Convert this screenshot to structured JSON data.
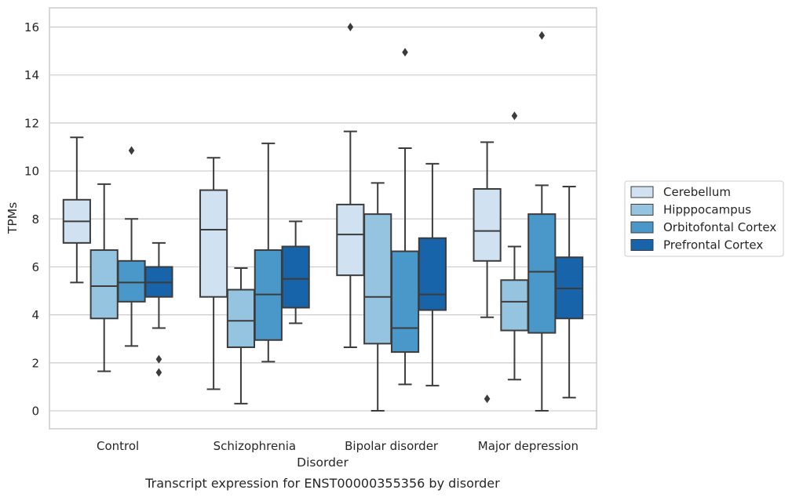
{
  "chart_data": {
    "type": "box",
    "caption": "Transcript expression for ENST00000355356 by disorder",
    "xlabel": "Disorder",
    "ylabel": "TPMs",
    "ylim": [
      -0.75,
      16.8
    ],
    "yticks": [
      0,
      2,
      4,
      6,
      8,
      10,
      12,
      14,
      16
    ],
    "grid": "horizontal",
    "legend_position": "right",
    "categories": [
      "Control",
      "Schizophrenia",
      "Bipolar disorder",
      "Major depression"
    ],
    "series": [
      {
        "name": "Cerebellum",
        "color": "#d0e1f2",
        "boxes": [
          {
            "whislo": 5.35,
            "q1": 7.0,
            "med": 7.9,
            "q3": 8.8,
            "whishi": 11.4,
            "fliers": []
          },
          {
            "whislo": 0.9,
            "q1": 4.75,
            "med": 7.55,
            "q3": 9.2,
            "whishi": 10.55,
            "fliers": []
          },
          {
            "whislo": 2.65,
            "q1": 5.65,
            "med": 7.35,
            "q3": 8.6,
            "whishi": 11.65,
            "fliers": [
              16.0
            ]
          },
          {
            "whislo": 3.9,
            "q1": 6.25,
            "med": 7.5,
            "q3": 9.25,
            "whishi": 11.2,
            "fliers": [
              0.5
            ]
          }
        ]
      },
      {
        "name": "Hipppocampus",
        "color": "#94c4df",
        "boxes": [
          {
            "whislo": 1.65,
            "q1": 3.85,
            "med": 5.2,
            "q3": 6.7,
            "whishi": 9.45,
            "fliers": []
          },
          {
            "whislo": 0.3,
            "q1": 2.65,
            "med": 3.75,
            "q3": 5.05,
            "whishi": 5.95,
            "fliers": []
          },
          {
            "whislo": 0.0,
            "q1": 2.8,
            "med": 4.75,
            "q3": 8.2,
            "whishi": 9.5,
            "fliers": []
          },
          {
            "whislo": 1.3,
            "q1": 3.35,
            "med": 4.55,
            "q3": 5.45,
            "whishi": 6.85,
            "fliers": [
              12.3
            ]
          }
        ]
      },
      {
        "name": "Orbitofontal Cortex",
        "color": "#4a98c9",
        "boxes": [
          {
            "whislo": 2.7,
            "q1": 4.55,
            "med": 5.35,
            "q3": 6.25,
            "whishi": 8.0,
            "fliers": [
              10.85
            ]
          },
          {
            "whislo": 2.05,
            "q1": 2.95,
            "med": 4.85,
            "q3": 6.7,
            "whishi": 11.15,
            "fliers": []
          },
          {
            "whislo": 1.1,
            "q1": 2.45,
            "med": 3.45,
            "q3": 6.65,
            "whishi": 10.95,
            "fliers": [
              14.95
            ]
          },
          {
            "whislo": 0.0,
            "q1": 3.25,
            "med": 5.8,
            "q3": 8.2,
            "whishi": 9.4,
            "fliers": [
              15.65
            ]
          }
        ]
      },
      {
        "name": "Prefrontal Cortex",
        "color": "#1764ab",
        "boxes": [
          {
            "whislo": 3.45,
            "q1": 4.75,
            "med": 5.35,
            "q3": 6.0,
            "whishi": 7.0,
            "fliers": [
              2.15,
              1.6
            ]
          },
          {
            "whislo": 3.65,
            "q1": 4.3,
            "med": 5.5,
            "q3": 6.85,
            "whishi": 7.9,
            "fliers": []
          },
          {
            "whislo": 1.05,
            "q1": 4.2,
            "med": 4.85,
            "q3": 7.2,
            "whishi": 10.3,
            "fliers": []
          },
          {
            "whislo": 0.55,
            "q1": 3.85,
            "med": 5.1,
            "q3": 6.4,
            "whishi": 9.35,
            "fliers": []
          }
        ]
      }
    ]
  }
}
